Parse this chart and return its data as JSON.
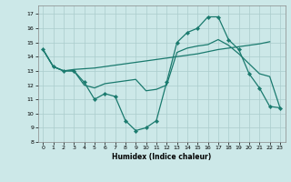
{
  "title": "",
  "xlabel": "Humidex (Indice chaleur)",
  "background_color": "#cce8e8",
  "grid_color": "#aacccc",
  "line_color": "#1a7a6e",
  "xlim": [
    -0.5,
    23.5
  ],
  "ylim": [
    8,
    17.6
  ],
  "yticks": [
    8,
    9,
    10,
    11,
    12,
    13,
    14,
    15,
    16,
    17
  ],
  "xticks": [
    0,
    1,
    2,
    3,
    4,
    5,
    6,
    7,
    8,
    9,
    10,
    11,
    12,
    13,
    14,
    15,
    16,
    17,
    18,
    19,
    20,
    21,
    22,
    23
  ],
  "line1_x": [
    0,
    1,
    2,
    3,
    4,
    5,
    6,
    7,
    8,
    9,
    10,
    11,
    12,
    13,
    14,
    15,
    16,
    17,
    18,
    19,
    20,
    21,
    22,
    23
  ],
  "line1_y": [
    14.5,
    13.3,
    13.0,
    13.0,
    12.2,
    11.0,
    11.4,
    11.2,
    9.5,
    8.8,
    9.0,
    9.5,
    12.2,
    15.0,
    15.7,
    16.0,
    16.8,
    16.8,
    15.2,
    14.5,
    12.8,
    11.8,
    10.5,
    10.4
  ],
  "line2_x": [
    0,
    1,
    2,
    3,
    4,
    5,
    6,
    7,
    8,
    9,
    10,
    11,
    12,
    13,
    14,
    15,
    16,
    17,
    18,
    19,
    20,
    21,
    22
  ],
  "line2_y": [
    14.5,
    13.3,
    13.0,
    13.1,
    13.15,
    13.2,
    13.3,
    13.4,
    13.5,
    13.6,
    13.7,
    13.8,
    13.9,
    14.0,
    14.1,
    14.2,
    14.35,
    14.5,
    14.6,
    14.7,
    14.8,
    14.9,
    15.05
  ],
  "line3_x": [
    0,
    1,
    2,
    3,
    4,
    5,
    6,
    7,
    8,
    9,
    10,
    11,
    12,
    13,
    14,
    15,
    16,
    17,
    18,
    19,
    20,
    21,
    22,
    23
  ],
  "line3_y": [
    14.5,
    13.3,
    13.0,
    13.0,
    12.0,
    11.8,
    12.1,
    12.2,
    12.3,
    12.4,
    11.6,
    11.7,
    12.0,
    14.3,
    14.6,
    14.75,
    14.85,
    15.2,
    14.8,
    14.2,
    13.5,
    12.8,
    12.6,
    10.4
  ]
}
